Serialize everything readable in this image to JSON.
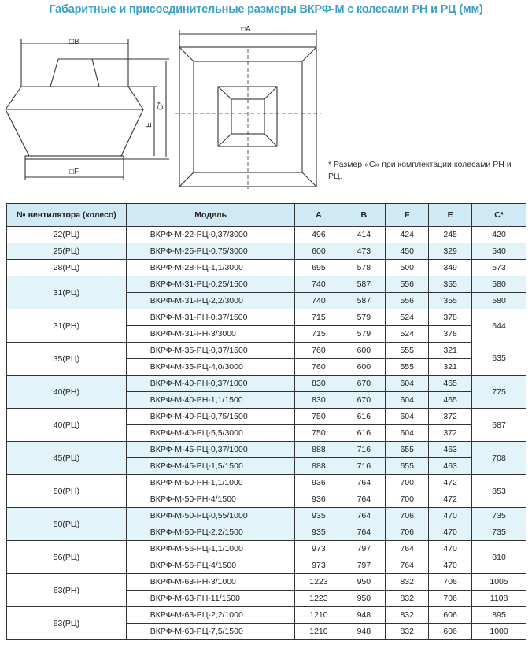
{
  "title": "Габаритные и присоединительные размеры ВКРФ-М с колесами РН и РЦ (мм)",
  "diagram": {
    "label_b": "□B",
    "label_f": "□F",
    "label_e": "E",
    "label_c": "C*",
    "label_a": "□A"
  },
  "note": "* Размер «С» при комплектации колесами РН и РЦ.",
  "table": {
    "headers": [
      "№ вентилятора (колесо)",
      "Модель",
      "A",
      "B",
      "F",
      "E",
      "C*"
    ],
    "groups": [
      {
        "fan": "22(РЦ)",
        "shade": false,
        "rows": [
          {
            "model": "ВКРФ-М-22-РЦ-0,37/3000",
            "A": "496",
            "B": "414",
            "F": "424",
            "E": "245",
            "C": "420"
          }
        ]
      },
      {
        "fan": "25(РЦ)",
        "shade": true,
        "rows": [
          {
            "model": "ВКРФ-М-25-РЦ-0,75/3000",
            "A": "600",
            "B": "473",
            "F": "450",
            "E": "329",
            "C": "540"
          }
        ]
      },
      {
        "fan": "28(РЦ)",
        "shade": false,
        "rows": [
          {
            "model": "ВКРФ-М-28-РЦ-1,1/3000",
            "A": "695",
            "B": "578",
            "F": "500",
            "E": "349",
            "C": "573"
          }
        ]
      },
      {
        "fan": "31(РЦ)",
        "shade": true,
        "rows": [
          {
            "model": "ВКРФ-М-31-РЦ-0,25/1500",
            "A": "740",
            "B": "587",
            "F": "556",
            "E": "355",
            "C": "580"
          },
          {
            "model": "ВКРФ-М-31-РЦ-2,2/3000",
            "A": "740",
            "B": "587",
            "F": "556",
            "E": "355",
            "C": "580"
          }
        ]
      },
      {
        "fan": "31(РН)",
        "shade": false,
        "c_merged": "644",
        "rows": [
          {
            "model": "ВКРФ-М-31-РН-0,37/1500",
            "A": "715",
            "B": "579",
            "F": "524",
            "E": "378"
          },
          {
            "model": "ВКРФ-М-31-РН-3/3000",
            "A": "715",
            "B": "579",
            "F": "524",
            "E": "378"
          }
        ]
      },
      {
        "fan": "35(РЦ)",
        "shade": false,
        "c_merged": "635",
        "rows": [
          {
            "model": "ВКРФ-М-35-РЦ-0,37/1500",
            "A": "760",
            "B": "600",
            "F": "555",
            "E": "321"
          },
          {
            "model": "ВКРФ-М-35-РЦ-4,0/3000",
            "A": "760",
            "B": "600",
            "F": "555",
            "E": "321"
          }
        ]
      },
      {
        "fan": "40(РН)",
        "shade": true,
        "c_merged": "775",
        "rows": [
          {
            "model": "ВКРФ-М-40-РН-0,37/1000",
            "A": "830",
            "B": "670",
            "F": "604",
            "E": "465"
          },
          {
            "model": "ВКРФ-М-40-РН-1,1/1500",
            "A": "830",
            "B": "670",
            "F": "604",
            "E": "465"
          }
        ]
      },
      {
        "fan": "40(РЦ)",
        "shade": false,
        "c_merged": "687",
        "rows": [
          {
            "model": "ВКРФ-М-40-РЦ-0,75/1500",
            "A": "750",
            "B": "616",
            "F": "604",
            "E": "372"
          },
          {
            "model": "ВКРФ-М-40-РЦ-5,5/3000",
            "A": "750",
            "B": "616",
            "F": "604",
            "E": "372"
          }
        ]
      },
      {
        "fan": "45(РЦ)",
        "shade": true,
        "c_merged": "708",
        "rows": [
          {
            "model": "ВКРФ-М-45-РЦ-0,37/1000",
            "A": "888",
            "B": "716",
            "F": "655",
            "E": "463"
          },
          {
            "model": "ВКРФ-М-45-РЦ-1,5/1500",
            "A": "888",
            "B": "716",
            "F": "655",
            "E": "463"
          }
        ]
      },
      {
        "fan": "50(РН)",
        "shade": false,
        "c_merged": "853",
        "rows": [
          {
            "model": "ВКРФ-М-50-РН-1,1/1000",
            "A": "936",
            "B": "764",
            "F": "700",
            "E": "472"
          },
          {
            "model": "ВКРФ-М-50-РН-4/1500",
            "A": "936",
            "B": "764",
            "F": "700",
            "E": "472"
          }
        ]
      },
      {
        "fan": "50(РЦ)",
        "shade": true,
        "rows": [
          {
            "model": "ВКРФ-М-50-РЦ-0,55/1000",
            "A": "935",
            "B": "764",
            "F": "706",
            "E": "470",
            "C": "735"
          },
          {
            "model": "ВКРФ-М-50-РЦ-2,2/1500",
            "A": "935",
            "B": "764",
            "F": "706",
            "E": "470",
            "C": "735"
          }
        ]
      },
      {
        "fan": "56(РЦ)",
        "shade": false,
        "c_merged": "810",
        "rows": [
          {
            "model": "ВКРФ-М-56-РЦ-1,1/1000",
            "A": "973",
            "B": "797",
            "F": "764",
            "E": "470"
          },
          {
            "model": "ВКРФ-М-56-РЦ-4/1500",
            "A": "973",
            "B": "797",
            "F": "764",
            "E": "470"
          }
        ]
      },
      {
        "fan": "63(РН)",
        "shade": false,
        "rows": [
          {
            "model": "ВКРФ-М-63-РН-3/1000",
            "A": "1223",
            "B": "950",
            "F": "832",
            "E": "706",
            "C": "1005"
          },
          {
            "model": "ВКРФ-М-63-РН-11/1500",
            "A": "1223",
            "B": "950",
            "F": "832",
            "E": "706",
            "C": "1108"
          }
        ]
      },
      {
        "fan": "63(РЦ)",
        "shade": false,
        "rows": [
          {
            "model": "ВКРФ-М-63-РЦ-2,2/1000",
            "A": "1210",
            "B": "948",
            "F": "832",
            "E": "606",
            "C": "895"
          },
          {
            "model": "ВКРФ-М-63-РЦ-7,5/1500",
            "A": "1210",
            "B": "948",
            "F": "832",
            "E": "606",
            "C": "1000"
          }
        ]
      }
    ]
  },
  "colors": {
    "title": "#3c9fc6",
    "header_bg": "#cfe9f5",
    "shade_bg": "#e3f3fa"
  }
}
